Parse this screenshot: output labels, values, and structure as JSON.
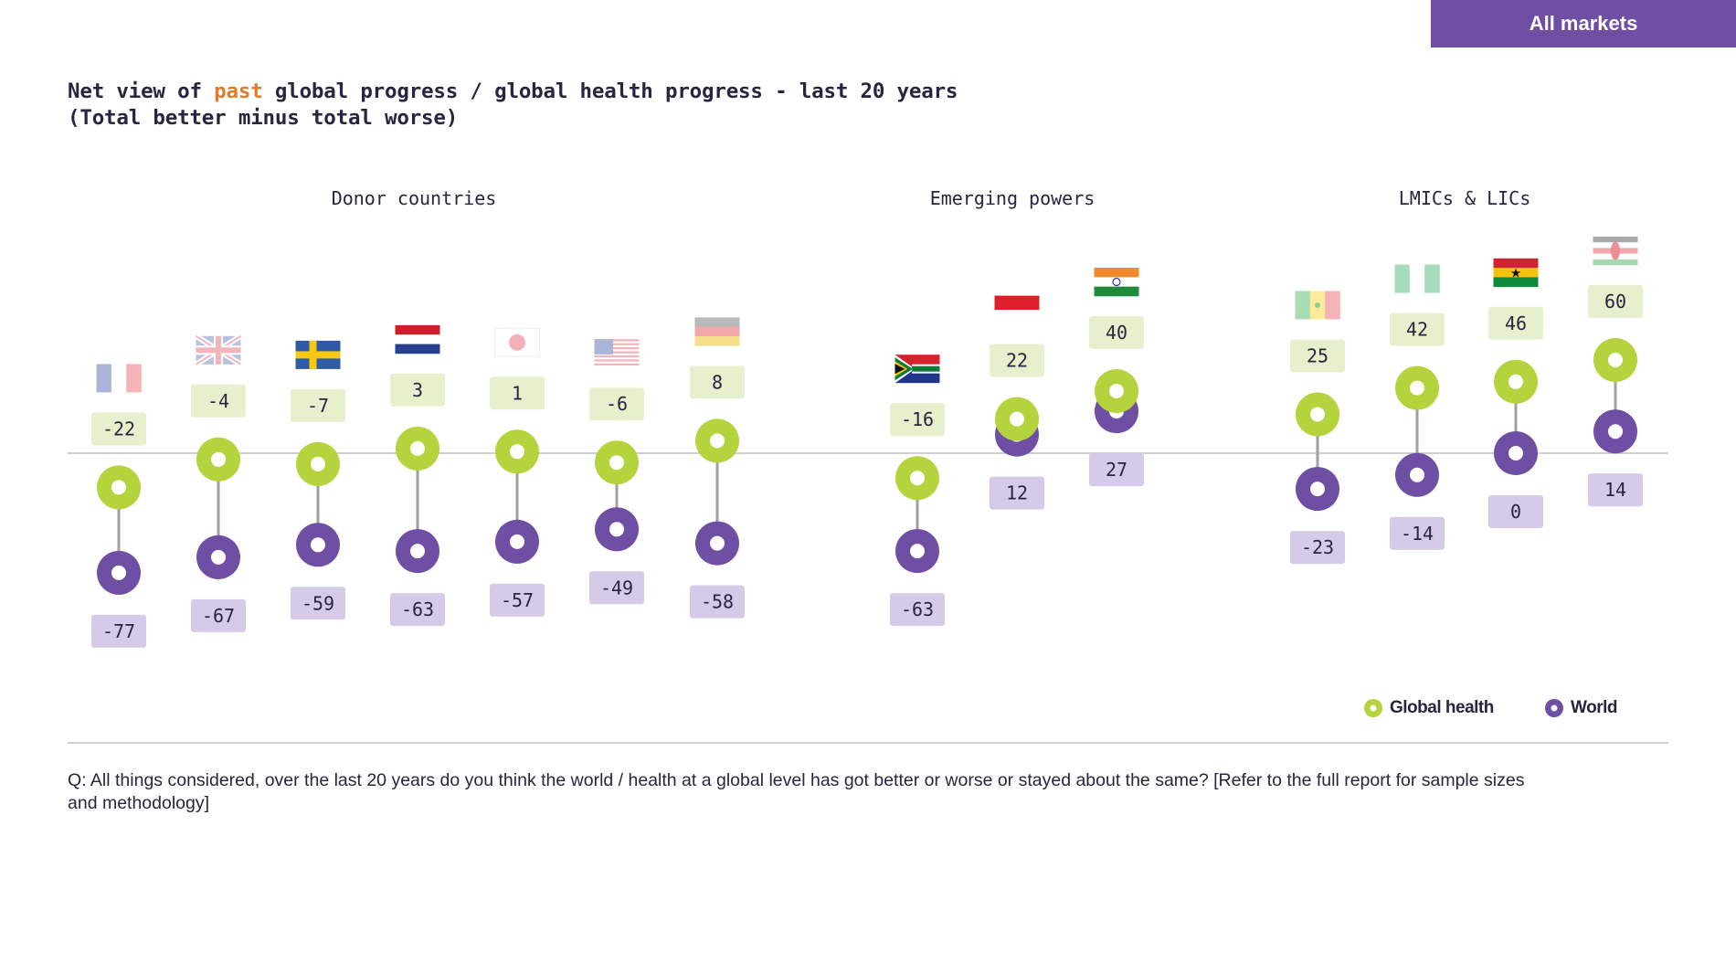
{
  "tab": {
    "label": "All markets"
  },
  "title": {
    "part1": "Net view of ",
    "highlight": "past",
    "part2": " global progress / global health progress - last 20 years",
    "line2": "(Total better minus total worse)"
  },
  "colors": {
    "global_health": "#b5d33d",
    "world": "#6e4fa3",
    "gh_label_bg": "#e6f0cc",
    "world_label_bg": "#d5cbe8",
    "highlight": "#e07b2a"
  },
  "legend": {
    "global_health": "Global health",
    "world": "World"
  },
  "question": "Q: All things considered, over the last 20 years do you think the world / health at a global level has got better or worse or stayed about the same? [Refer to the full report for sample sizes and methodology]",
  "chart_data": {
    "type": "dumbbell",
    "title": "Net view of past global progress / global health progress - last 20 years",
    "subtitle": "(Total better minus total worse)",
    "ylim": [
      -80,
      62
    ],
    "groups": [
      {
        "name": "Donor countries",
        "count": 7
      },
      {
        "name": "Emerging powers",
        "count": 3
      },
      {
        "name": "LMICs & LICs",
        "count": 4
      }
    ],
    "categories": [
      {
        "flag": "france-flag",
        "global_health": -22,
        "world": -77
      },
      {
        "flag": "uk-flag",
        "global_health": -4,
        "world": -67
      },
      {
        "flag": "sweden-flag",
        "global_health": -7,
        "world": -59
      },
      {
        "flag": "netherlands-flag",
        "global_health": 3,
        "world": -63
      },
      {
        "flag": "japan-flag",
        "global_health": 1,
        "world": -57
      },
      {
        "flag": "usa-flag",
        "global_health": -6,
        "world": -49
      },
      {
        "flag": "germany-flag",
        "global_health": 8,
        "world": -58
      },
      {
        "flag": "south-africa-flag",
        "global_health": -16,
        "world": -63
      },
      {
        "flag": "indonesia-flag",
        "global_health": 22,
        "world": 12
      },
      {
        "flag": "india-flag",
        "global_health": 40,
        "world": 27
      },
      {
        "flag": "senegal-flag",
        "global_health": 25,
        "world": -23
      },
      {
        "flag": "nigeria-flag",
        "global_health": 42,
        "world": -14
      },
      {
        "flag": "ghana-flag",
        "global_health": 46,
        "world": 0
      },
      {
        "flag": "kenya-flag",
        "global_health": 60,
        "world": 14
      }
    ],
    "series": [
      {
        "name": "Global health",
        "key": "global_health"
      },
      {
        "name": "World",
        "key": "world"
      }
    ]
  }
}
